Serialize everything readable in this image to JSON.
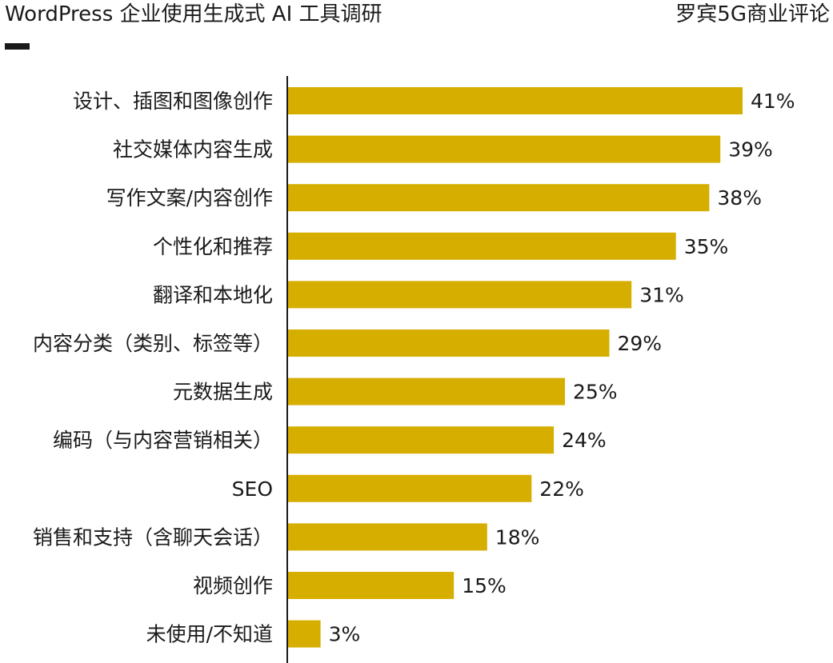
{
  "header": {
    "title": "WordPress 企业使用生成式 AI 工具调研",
    "source": "罗宾5G商业评论"
  },
  "colors": {
    "bar": "#d6ae00",
    "axis": "#1a1a1a",
    "text": "#1a1a1a",
    "background": "#ffffff"
  },
  "chart_data": {
    "type": "bar",
    "orientation": "horizontal",
    "title": "",
    "xlabel": "",
    "ylabel": "",
    "grid": false,
    "legend": "none",
    "xlim": [
      0,
      100
    ],
    "categories": [
      "设计、插图和图像创作",
      "社交媒体内容生成",
      "写作文案/内容创作",
      "个性化和推荐",
      "翻译和本地化",
      "内容分类（类别、标签等）",
      "元数据生成",
      "编码（与内容营销相关）",
      "SEO",
      "销售和支持（含聊天会话）",
      "视频创作",
      "未使用/不知道"
    ],
    "values": [
      41,
      39,
      38,
      35,
      31,
      29,
      25,
      24,
      22,
      18,
      15,
      3
    ],
    "value_labels": [
      "41%",
      "39%",
      "38%",
      "35%",
      "31%",
      "29%",
      "25%",
      "24%",
      "22%",
      "18%",
      "15%",
      "3%"
    ]
  }
}
